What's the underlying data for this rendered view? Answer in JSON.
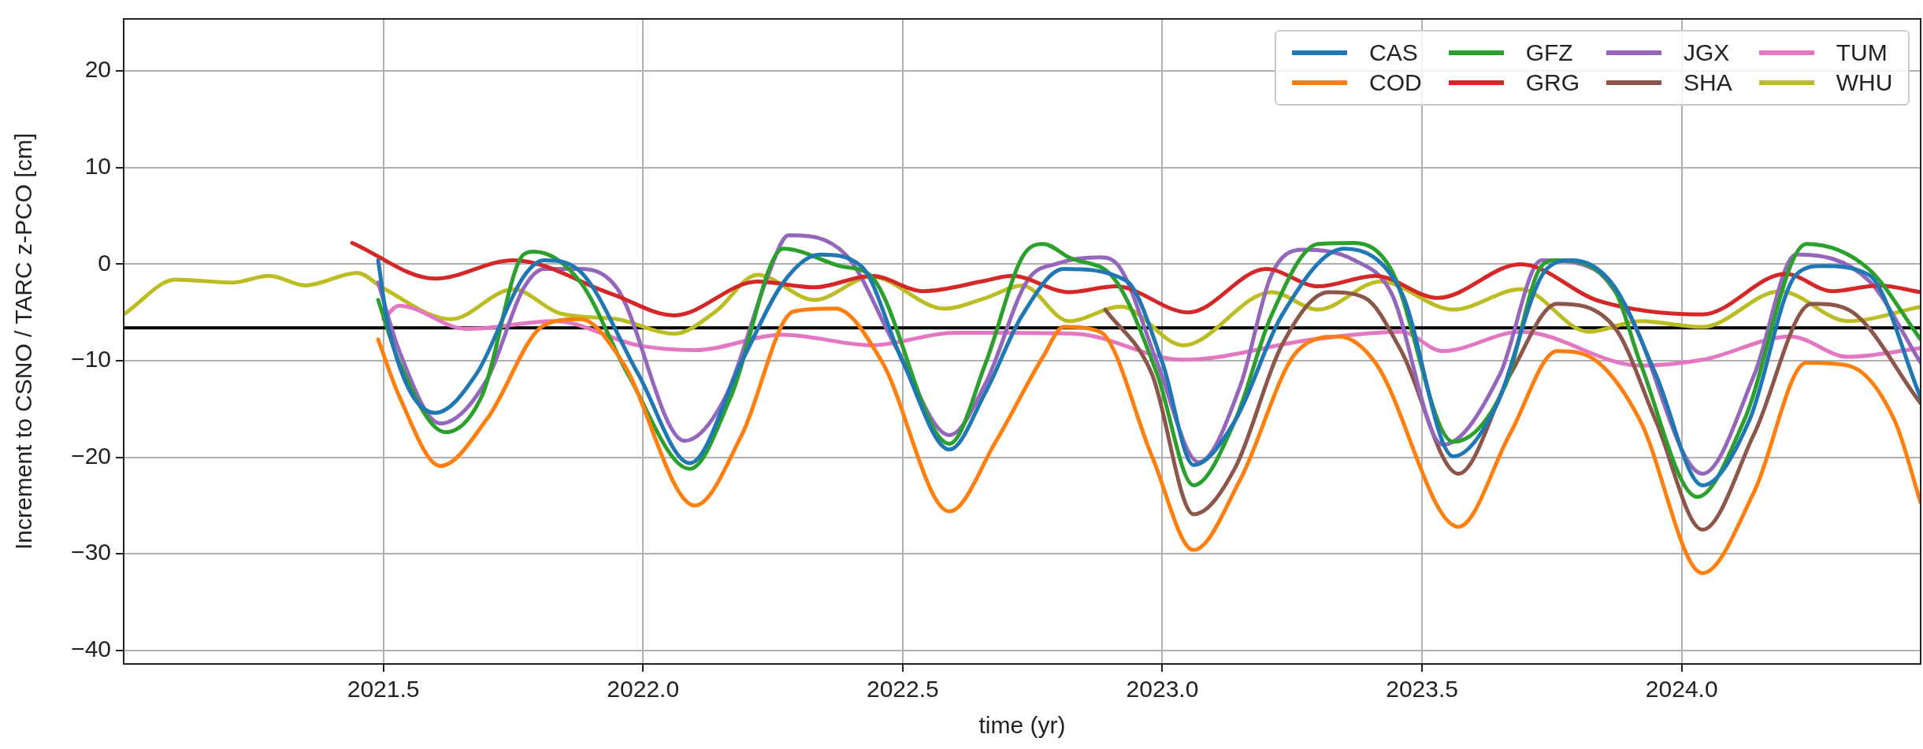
{
  "chart_data": {
    "type": "line",
    "xlabel": "time (yr)",
    "ylabel": "Increment to CSNO / TARC z-PCO [cm]",
    "xlim": [
      2021.0,
      2024.46
    ],
    "ylim": [
      -41.4,
      25.4
    ],
    "xticks": [
      2021.5,
      {
        "value": 2022,
        "label": "2022.0"
      },
      2022.5,
      {
        "value": 2023,
        "label": "2023.0"
      },
      2023.5,
      {
        "value": 2024,
        "label": "2024.0"
      }
    ],
    "yticks": [
      -40,
      -30,
      -20,
      -10,
      0,
      10,
      20
    ],
    "grid": true,
    "legend": "top right",
    "marker": "none",
    "line_style": "solid",
    "ref_lines": [
      {
        "axis": "y",
        "value": -6.6,
        "color": "#000000"
      }
    ],
    "series": [
      {
        "name": "CAS",
        "color": "#1f77b4",
        "x": [
          2021.49,
          2021.51,
          2021.6,
          2021.68,
          2021.77,
          2021.81,
          2021.88,
          2021.99,
          2022.09,
          2022.19,
          2022.27,
          2022.34,
          2022.42,
          2022.5,
          2022.59,
          2022.66,
          2022.73,
          2022.81,
          2022.93,
          2023.0,
          2023.06,
          2023.14,
          2023.23,
          2023.35,
          2023.46,
          2023.56,
          2023.64,
          2023.74,
          2023.79,
          2023.87,
          2023.95,
          2024.04,
          2024.13,
          2024.22,
          2024.27,
          2024.36,
          2024.46
        ],
        "values": [
          0.4,
          -6.6,
          -15.4,
          -11.3,
          -1.3,
          0.4,
          -0.8,
          -11.3,
          -20.6,
          -10.1,
          -1.9,
          1.0,
          -0.2,
          -10.1,
          -19.2,
          -13.2,
          -5.3,
          -0.5,
          -1.7,
          -10.2,
          -20.8,
          -16.2,
          -5.3,
          1.6,
          -2.9,
          -19.9,
          -15.0,
          -0.5,
          0.4,
          -2.3,
          -11.4,
          -22.9,
          -16.2,
          -1.1,
          -0.2,
          -1.1,
          -13.8
        ]
      },
      {
        "name": "COD",
        "color": "#ff7f0e",
        "x": [
          2021.49,
          2021.53,
          2021.61,
          2021.7,
          2021.81,
          2021.88,
          2021.96,
          2022.1,
          2022.19,
          2022.29,
          2022.37,
          2022.46,
          2022.59,
          2022.68,
          2022.77,
          2022.81,
          2022.88,
          2022.98,
          2023.06,
          2023.15,
          2023.26,
          2023.34,
          2023.41,
          2023.57,
          2023.67,
          2023.76,
          2023.84,
          2023.92,
          2024.04,
          2024.14,
          2024.24,
          2024.32,
          2024.41,
          2024.46
        ],
        "values": [
          -7.8,
          -13.6,
          -20.9,
          -16.0,
          -6.3,
          -5.7,
          -10.1,
          -25.0,
          -17.7,
          -4.9,
          -4.6,
          -10.1,
          -25.6,
          -18.3,
          -9.6,
          -6.5,
          -7.0,
          -19.9,
          -29.6,
          -22.3,
          -9.0,
          -7.5,
          -10.2,
          -27.2,
          -17.5,
          -9.0,
          -10.2,
          -16.2,
          -32.0,
          -23.5,
          -10.2,
          -10.5,
          -16.2,
          -24.7
        ]
      },
      {
        "name": "GFZ",
        "color": "#2ca02c",
        "x": [
          2021.49,
          2021.53,
          2021.62,
          2021.69,
          2021.77,
          2021.79,
          2021.88,
          2021.97,
          2022.09,
          2022.17,
          2022.27,
          2022.38,
          2022.44,
          2022.59,
          2022.66,
          2022.73,
          2022.77,
          2022.82,
          2022.91,
          2022.99,
          2023.06,
          2023.14,
          2023.21,
          2023.3,
          2023.37,
          2023.44,
          2023.56,
          2023.66,
          2023.73,
          2023.76,
          2023.87,
          2023.92,
          2024.03,
          2024.12,
          2024.24,
          2024.36,
          2024.46
        ],
        "values": [
          -3.7,
          -10.1,
          -17.4,
          -13.6,
          1.0,
          1.3,
          -1.9,
          -11.3,
          -21.2,
          -13.6,
          1.6,
          -0.2,
          -1.3,
          -18.6,
          -10.2,
          0.7,
          2.1,
          0.7,
          -1.7,
          -11.4,
          -22.9,
          -16.2,
          -5.3,
          2.1,
          2.2,
          -0.5,
          -18.4,
          -12.6,
          -0.2,
          0.4,
          -2.6,
          -10.2,
          -24.1,
          -16.2,
          2.1,
          -0.5,
          -7.8
        ]
      },
      {
        "name": "GRG",
        "color": "#d62728",
        "x": [
          2021.44,
          2021.6,
          2021.75,
          2021.94,
          2022.06,
          2022.22,
          2022.33,
          2022.44,
          2022.54,
          2022.66,
          2022.71,
          2022.82,
          2022.91,
          2023.05,
          2023.2,
          2023.3,
          2023.41,
          2023.53,
          2023.69,
          2023.84,
          2024.04,
          2024.2,
          2024.29,
          2024.38,
          2024.46
        ],
        "values": [
          2.2,
          -1.5,
          0.4,
          -3.1,
          -5.3,
          -1.8,
          -2.4,
          -1.2,
          -2.8,
          -1.7,
          -1.2,
          -2.9,
          -2.3,
          -5.0,
          -0.5,
          -2.3,
          -1.2,
          -3.5,
          0,
          -3.8,
          -5.2,
          -1.0,
          -2.8,
          -2.2,
          -2.9
        ]
      },
      {
        "name": "JGX",
        "color": "#9467bd",
        "x": [
          2021.49,
          2021.53,
          2021.61,
          2021.7,
          2021.77,
          2021.81,
          2021.88,
          2021.95,
          2022.08,
          2022.16,
          2022.24,
          2022.28,
          2022.39,
          2022.49,
          2022.59,
          2022.66,
          2022.74,
          2022.8,
          2022.88,
          2022.92,
          2022.99,
          2023.07,
          2023.15,
          2023.21,
          2023.27,
          2023.37,
          2023.44,
          2023.54,
          2023.65,
          2023.73,
          2023.83,
          2023.9,
          2024.04,
          2024.14,
          2024.22,
          2024.36,
          2024.46
        ],
        "values": [
          -1.9,
          -8.9,
          -16.5,
          -11.9,
          -2.5,
          -0.5,
          -0.5,
          -2.5,
          -18.3,
          -13.6,
          -1.3,
          3.0,
          1.0,
          -8.9,
          -17.7,
          -12.3,
          -1.7,
          0.1,
          0.7,
          -0.5,
          -10.2,
          -20.5,
          -12.6,
          -1.1,
          1.5,
          0.4,
          -2.9,
          -18.7,
          -11.4,
          0.4,
          -0.5,
          -5.3,
          -21.7,
          -11.4,
          1.0,
          -1.7,
          -10.2
        ]
      },
      {
        "name": "SHA",
        "color": "#8c564b",
        "x": [
          2022.89,
          2022.98,
          2023.06,
          2023.14,
          2023.23,
          2023.32,
          2023.39,
          2023.46,
          2023.57,
          2023.67,
          2023.76,
          2023.87,
          2023.95,
          2024.04,
          2024.14,
          2024.25,
          2024.32,
          2024.46
        ],
        "values": [
          -4.7,
          -11.4,
          -25.9,
          -21.1,
          -8.4,
          -2.9,
          -3.5,
          -9.0,
          -21.7,
          -11.4,
          -4.1,
          -6.5,
          -16.2,
          -27.5,
          -17.5,
          -4.1,
          -4.7,
          -14.4
        ]
      },
      {
        "name": "TUM",
        "color": "#e377c2",
        "x": [
          2021.5,
          2021.53,
          2021.66,
          2021.83,
          2021.99,
          2022.1,
          2022.27,
          2022.44,
          2022.6,
          2022.83,
          2023.04,
          2023.29,
          2023.46,
          2023.54,
          2023.69,
          2023.92,
          2024.04,
          2024.21,
          2024.32,
          2024.46
        ],
        "values": [
          -5.7,
          -4.3,
          -6.7,
          -5.9,
          -8.4,
          -8.9,
          -7.3,
          -8.4,
          -7.1,
          -7.2,
          -9.9,
          -7.8,
          -7.0,
          -9.0,
          -7.0,
          -10.5,
          -9.9,
          -7.5,
          -9.6,
          -8.7
        ]
      },
      {
        "name": "WHU",
        "color": "#bcbd22",
        "x": [
          2021.003,
          2021.1,
          2021.21,
          2021.28,
          2021.35,
          2021.45,
          2021.5,
          2021.63,
          2021.75,
          2021.84,
          2021.95,
          2022.06,
          2022.14,
          2022.22,
          2022.33,
          2022.44,
          2022.58,
          2022.66,
          2022.73,
          2022.82,
          2022.92,
          2023.04,
          2023.21,
          2023.3,
          2023.42,
          2023.56,
          2023.69,
          2023.82,
          2023.92,
          2024.04,
          2024.19,
          2024.32,
          2024.46
        ],
        "values": [
          -5.1,
          -1.6,
          -1.9,
          -1.2,
          -2.2,
          -0.9,
          -2.5,
          -5.7,
          -2.6,
          -5.1,
          -5.7,
          -7.2,
          -4.9,
          -1.1,
          -3.7,
          -1.3,
          -4.6,
          -3.5,
          -2.2,
          -5.9,
          -4.4,
          -8.4,
          -2.9,
          -4.7,
          -1.8,
          -4.7,
          -2.6,
          -7.0,
          -5.9,
          -6.5,
          -2.8,
          -5.9,
          -4.4
        ]
      }
    ]
  }
}
